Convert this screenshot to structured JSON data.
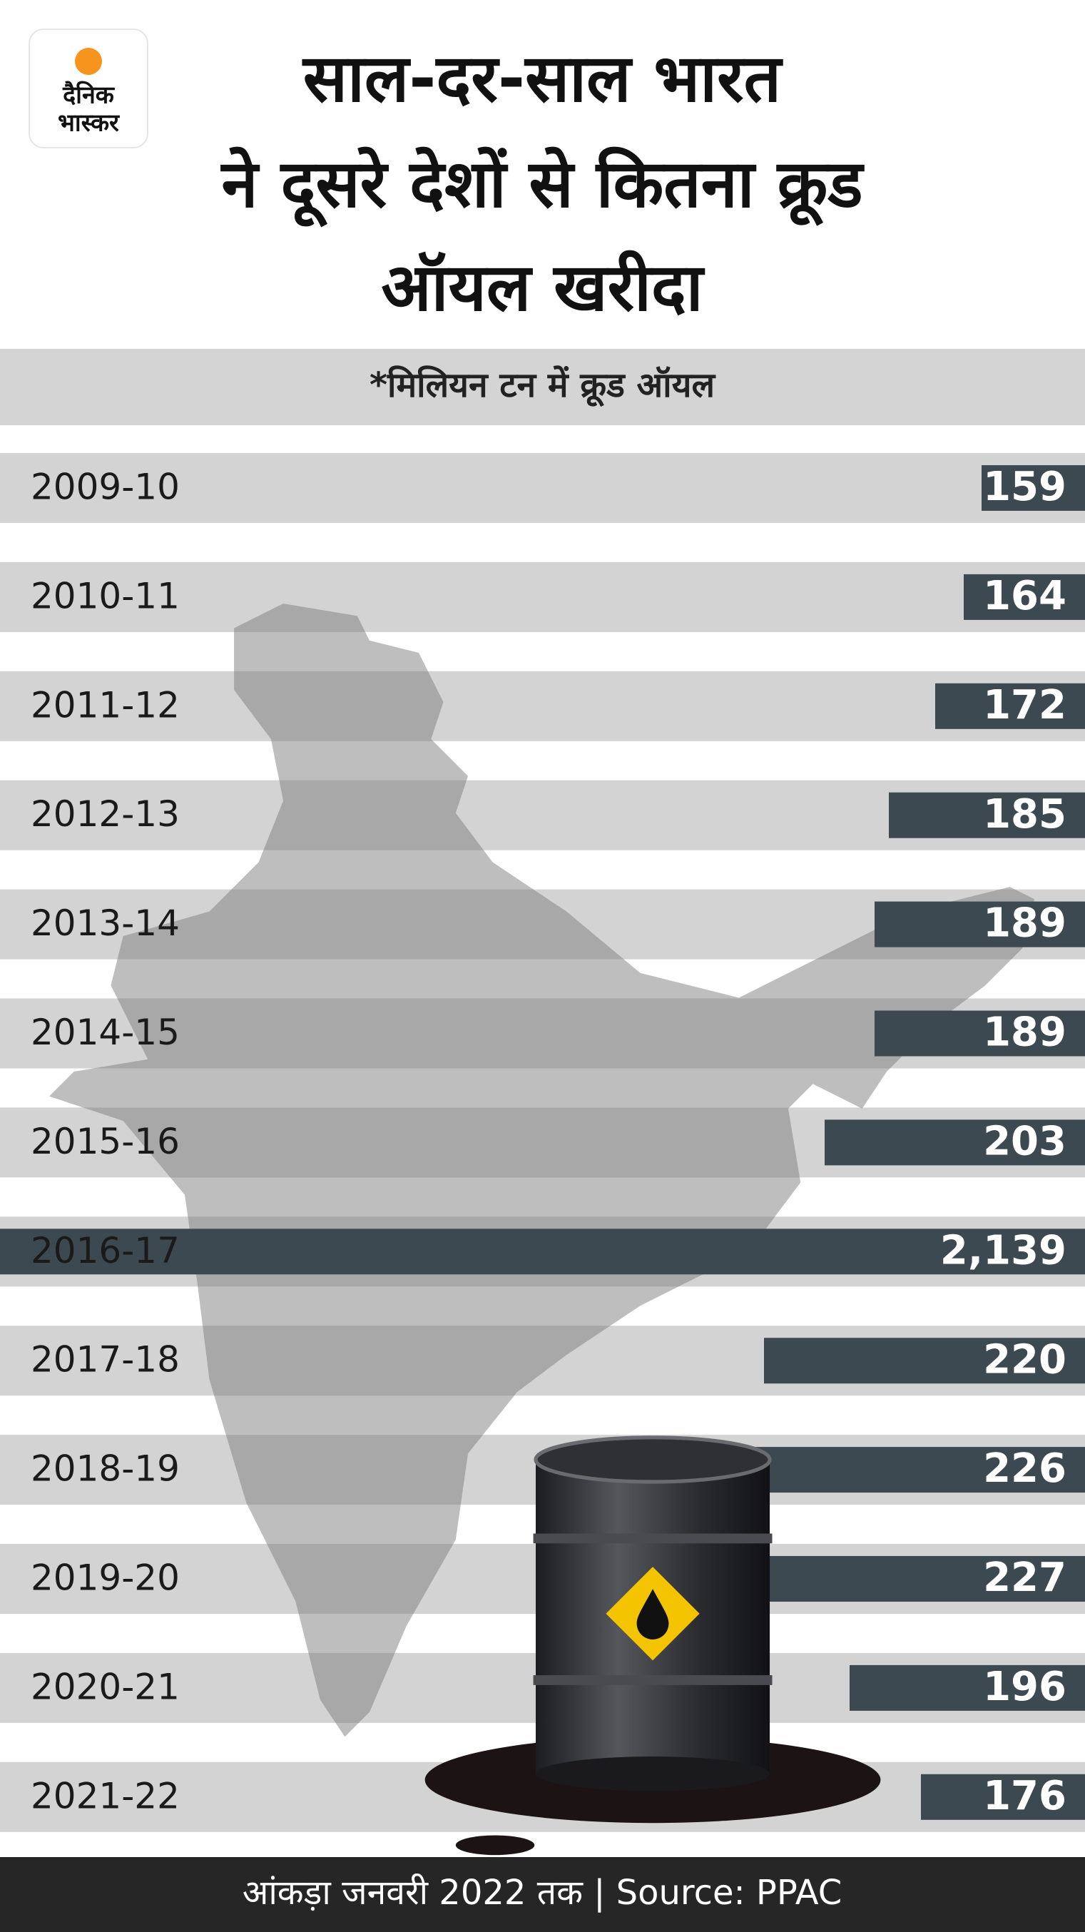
{
  "logo": {
    "line1": "दैनिक",
    "line2": "भास्कर"
  },
  "chart_data": {
    "type": "bar",
    "orientation": "horizontal",
    "title_lines": [
      "साल-दर-साल भारत",
      "ने दूसरे देशों से कितना क्रूड",
      "ऑयल खरीदा"
    ],
    "subtitle": "*मिलियन टन में क्रूड ऑयल",
    "categories": [
      "2009-10",
      "2010-11",
      "2011-12",
      "2012-13",
      "2013-14",
      "2014-15",
      "2015-16",
      "2016-17",
      "2017-18",
      "2018-19",
      "2019-20",
      "2020-21",
      "2021-22"
    ],
    "values": [
      159,
      164,
      172,
      185,
      189,
      189,
      203,
      2139,
      220,
      226,
      227,
      196,
      176
    ],
    "value_labels": [
      "159",
      "164",
      "172",
      "185",
      "189",
      "189",
      "203",
      "2,139",
      "220",
      "226",
      "227",
      "196",
      "176"
    ],
    "color": "#3c4951",
    "xlim": [
      130,
      240
    ],
    "source": "आंकड़ा जनवरी 2022 तक | Source: PPAC"
  }
}
